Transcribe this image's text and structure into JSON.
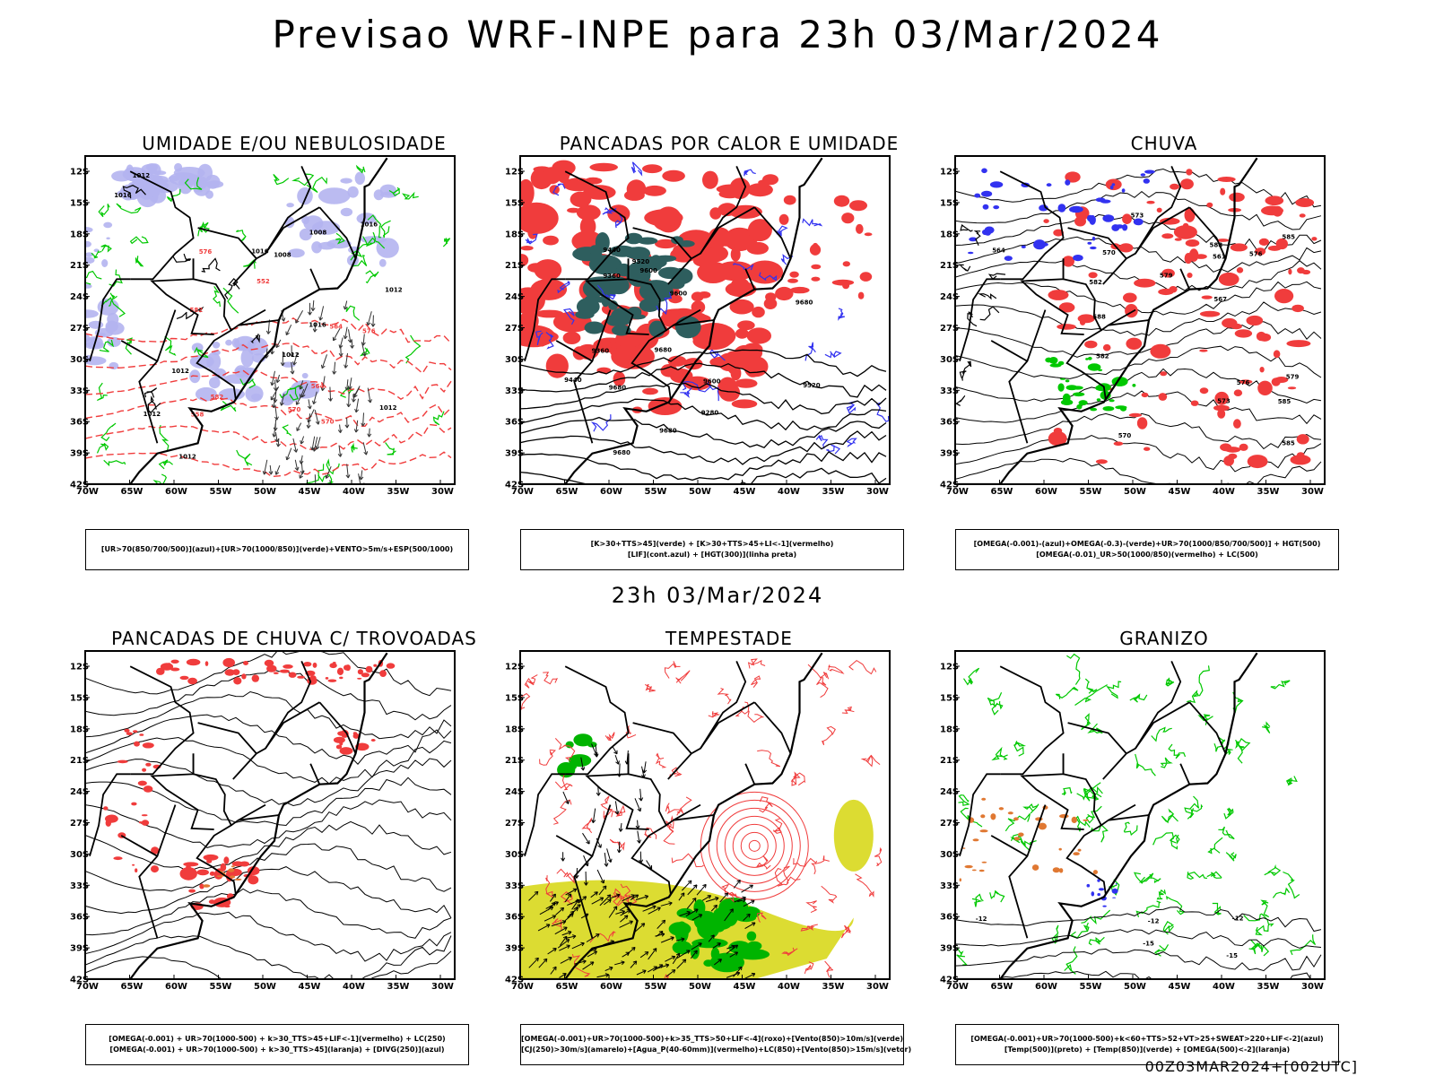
{
  "header": {
    "title": "Previsao WRF-INPE  para 23h 03/Mar/2024",
    "subtitle": "23h 03/Mar/2024",
    "footer": "00Z03MAR2024+[002UTC]"
  },
  "axes": {
    "lat_labels": [
      "12S",
      "15S",
      "18S",
      "21S",
      "24S",
      "27S",
      "30S",
      "33S",
      "36S",
      "39S",
      "42S"
    ],
    "lon_labels": [
      "70W",
      "65W",
      "60W",
      "55W",
      "50W",
      "45W",
      "40W",
      "35W",
      "30W"
    ]
  },
  "colors": {
    "moist_mid": "#b4b4f0",
    "moist_low": "#00c800",
    "alert_red": "#f03c3c",
    "dark_teal": "#2e5e5e",
    "blue_contour": "#3232f0",
    "storm_yellow": "#dcdc32",
    "storm_green": "#00b400",
    "orange": "#e07832"
  },
  "panels": [
    {
      "id": "umidade",
      "title": "UMIDADE E/OU NEBULOSIDADE",
      "legend": [
        "[UR>70(850/700/500)](azul)+[UR>70(1000/850)](verde)+VENTO>5m/s+ESP(500/1000)"
      ],
      "contour_labels": [
        "1012",
        "1012",
        "1012",
        "1016",
        "1008",
        "1012",
        "1016",
        "1016",
        "1012",
        "1016",
        "1008",
        "1012",
        "1012",
        "570",
        "570",
        "582",
        "582",
        "576",
        "558",
        "564",
        "564",
        "576",
        "552"
      ]
    },
    {
      "id": "pancadas-calor",
      "title": "PANCADAS POR CALOR E UMIDADE",
      "legend": [
        "[K>30+TTS>45](verde) + [K>30+TTS>45+LI<-1](vermelho)",
        "[LIF](cont.azul) + [HGT(300)](linha preta)"
      ],
      "contour_labels": [
        "9680",
        "9680",
        "9680",
        "9680",
        "9600",
        "9600",
        "9600",
        "9520",
        "9520",
        "9440",
        "9440",
        "9360",
        "9360",
        "9280",
        "9680"
      ]
    },
    {
      "id": "chuva",
      "title": "CHUVA",
      "legend": [
        "[OMEGA(-0.001)-(azul)+OMEGA(-0.3)-(verde)+UR>70(1000/850/700/500)] + HGT(500)",
        "[OMEGA(-0.01)_UR>50(1000/850)(vermelho) + LC(500)"
      ],
      "contour_labels": [
        "588",
        "588",
        "585",
        "585",
        "582",
        "579",
        "576",
        "573",
        "570",
        "567",
        "564",
        "561",
        "585",
        "582",
        "579",
        "576",
        "573",
        "570"
      ]
    },
    {
      "id": "pancadas-trovoadas",
      "title": "PANCADAS DE CHUVA C/ TROVOADAS",
      "legend": [
        "[OMEGA(-0.001) + UR>70(1000-500) + k>30_TTS>45+LIF<-1](vermelho) + LC(250)",
        "[OMEGA(-0.001) + UR>70(1000-500) + k>30_TTS>45](laranja) + [DIVG(250)](azul)"
      ],
      "contour_labels": []
    },
    {
      "id": "tempestade",
      "title": "TEMPESTADE",
      "legend": [
        "[OMEGA(-0.001)+UR>70(1000-500)+k>35_TTS>50+LIF<-4](roxo)+[Vento(850)>10m/s](verde)",
        "[CJ(250)>30m/s](amarelo)+[Agua_P(40-60mm)](vermelho)+LC(850)+[Vento(850)>15m/s](vetor)"
      ],
      "contour_labels": []
    },
    {
      "id": "granizo",
      "title": "GRANIZO",
      "legend": [
        "[OMEGA(-0.001)+UR>70(1000-500)+k<60+TTS>52+VT>25+SWEAT>220+LIF<-2](azul)",
        "[Temp(500)](preto) + [Temp(850)](verde) + [OMEGA(500)<-2](laranja)"
      ],
      "contour_labels": [
        "-12",
        "-12",
        "-12",
        "-15",
        "-15"
      ]
    }
  ]
}
